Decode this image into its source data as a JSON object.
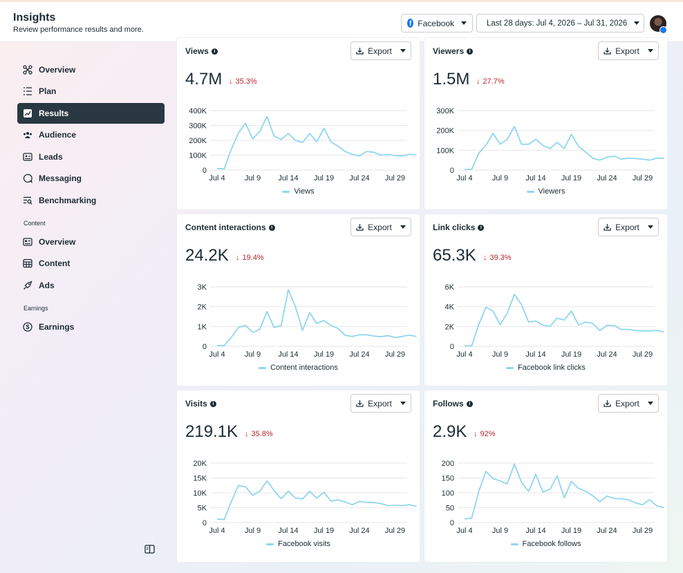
{
  "header": {
    "title": "Insights",
    "subtitle": "Review performance results and more.",
    "platform_label": "Facebook",
    "date_range_label": "Last 28 days: Jul 4, 2026 – Jul 31, 2026"
  },
  "sidebar": {
    "items": [
      {
        "label": "Overview",
        "icon": "overview-icon"
      },
      {
        "label": "Plan",
        "icon": "plan-icon"
      },
      {
        "label": "Results",
        "icon": "results-icon",
        "active": true
      },
      {
        "label": "Audience",
        "icon": "audience-icon"
      },
      {
        "label": "Leads",
        "icon": "leads-icon"
      },
      {
        "label": "Messaging",
        "icon": "messaging-icon"
      },
      {
        "label": "Benchmarking",
        "icon": "benchmarking-icon"
      }
    ],
    "content_section_label": "Content",
    "content_items": [
      {
        "label": "Overview",
        "icon": "content-overview-icon"
      },
      {
        "label": "Content",
        "icon": "content-icon"
      },
      {
        "label": "Ads",
        "icon": "ads-icon"
      }
    ],
    "earnings_section_label": "Earnings",
    "earnings_items": [
      {
        "label": "Earnings",
        "icon": "earnings-icon"
      }
    ]
  },
  "export_label": "Export",
  "x_tick_labels": [
    "Jul 4",
    "Jul 9",
    "Jul 14",
    "Jul 19",
    "Jul 24",
    "Jul 29"
  ],
  "colors": {
    "line": "#8fd6f0",
    "negative": "#b7262e",
    "active_nav": "#2a3842"
  },
  "chart_data": [
    {
      "type": "line",
      "title": "Views",
      "value": "4.7M",
      "change": "35.3%",
      "series": [
        {
          "name": "Views",
          "values": [
            10000,
            8000,
            140000,
            250000,
            315000,
            210000,
            260000,
            360000,
            230000,
            205000,
            245000,
            200000,
            185000,
            245000,
            190000,
            280000,
            190000,
            160000,
            125000,
            105000,
            95000,
            125000,
            120000,
            100000,
            105000,
            97000,
            95000,
            105000,
            103000
          ]
        }
      ],
      "yticks": [
        "0",
        "100K",
        "200K",
        "300K",
        "400K"
      ],
      "ylim": [
        0,
        400000
      ]
    },
    {
      "type": "line",
      "title": "Viewers",
      "value": "1.5M",
      "change": "27.7%",
      "series": [
        {
          "name": "Viewers",
          "values": [
            3000,
            3000,
            85000,
            125000,
            185000,
            130000,
            155000,
            220000,
            130000,
            130000,
            155000,
            125000,
            108000,
            140000,
            108000,
            180000,
            120000,
            90000,
            60000,
            50000,
            65000,
            70000,
            55000,
            60000,
            58000,
            55000,
            50000,
            60000,
            60000
          ]
        }
      ],
      "yticks": [
        "0",
        "100K",
        "200K",
        "300K"
      ],
      "ylim": [
        0,
        300000
      ]
    },
    {
      "type": "line",
      "title": "Content interactions",
      "value": "24.2K",
      "change": "19.4%",
      "series": [
        {
          "name": "Content interactions",
          "values": [
            30,
            30,
            450,
            950,
            1050,
            700,
            850,
            1750,
            950,
            1050,
            2850,
            2000,
            800,
            1700,
            1150,
            1300,
            1050,
            900,
            550,
            500,
            580,
            580,
            520,
            480,
            540,
            440,
            500,
            560,
            500
          ]
        }
      ],
      "yticks": [
        "0",
        "1K",
        "2K",
        "3K"
      ],
      "ylim": [
        0,
        3000
      ]
    },
    {
      "type": "line",
      "title": "Link clicks",
      "value": "65.3K",
      "change": "39.3%",
      "series": [
        {
          "name": "Facebook link clicks",
          "values": [
            50,
            50,
            2200,
            3950,
            3550,
            2200,
            3350,
            5250,
            4200,
            2450,
            2550,
            2150,
            2000,
            2850,
            2650,
            3550,
            2150,
            2450,
            2300,
            1600,
            2100,
            2100,
            1700,
            1700,
            1600,
            1550,
            1550,
            1600,
            1450
          ]
        }
      ],
      "yticks": [
        "0",
        "2K",
        "4K",
        "6K"
      ],
      "ylim": [
        0,
        6000
      ]
    },
    {
      "type": "line",
      "title": "Visits",
      "value": "219.1K",
      "change": "35.8%",
      "series": [
        {
          "name": "Facebook visits",
          "values": [
            1200,
            1000,
            7000,
            12500,
            12000,
            9200,
            10500,
            14000,
            10800,
            8000,
            10500,
            8300,
            7900,
            10500,
            8200,
            10200,
            7200,
            7600,
            6900,
            6000,
            7100,
            6800,
            6700,
            6400,
            5700,
            5800,
            5700,
            6000,
            5400
          ]
        }
      ],
      "yticks": [
        "0",
        "5K",
        "10K",
        "15K",
        "20K"
      ],
      "ylim": [
        0,
        20000
      ]
    },
    {
      "type": "line",
      "title": "Follows",
      "value": "2.9K",
      "change": "92%",
      "series": [
        {
          "name": "Facebook follows",
          "values": [
            12,
            15,
            105,
            172,
            148,
            140,
            130,
            197,
            135,
            105,
            162,
            103,
            112,
            157,
            83,
            138,
            115,
            105,
            90,
            70,
            89,
            81,
            80,
            77,
            66,
            60,
            77,
            56,
            50
          ]
        }
      ],
      "yticks": [
        "0",
        "50",
        "100",
        "150",
        "200"
      ],
      "ylim": [
        0,
        200
      ]
    }
  ]
}
